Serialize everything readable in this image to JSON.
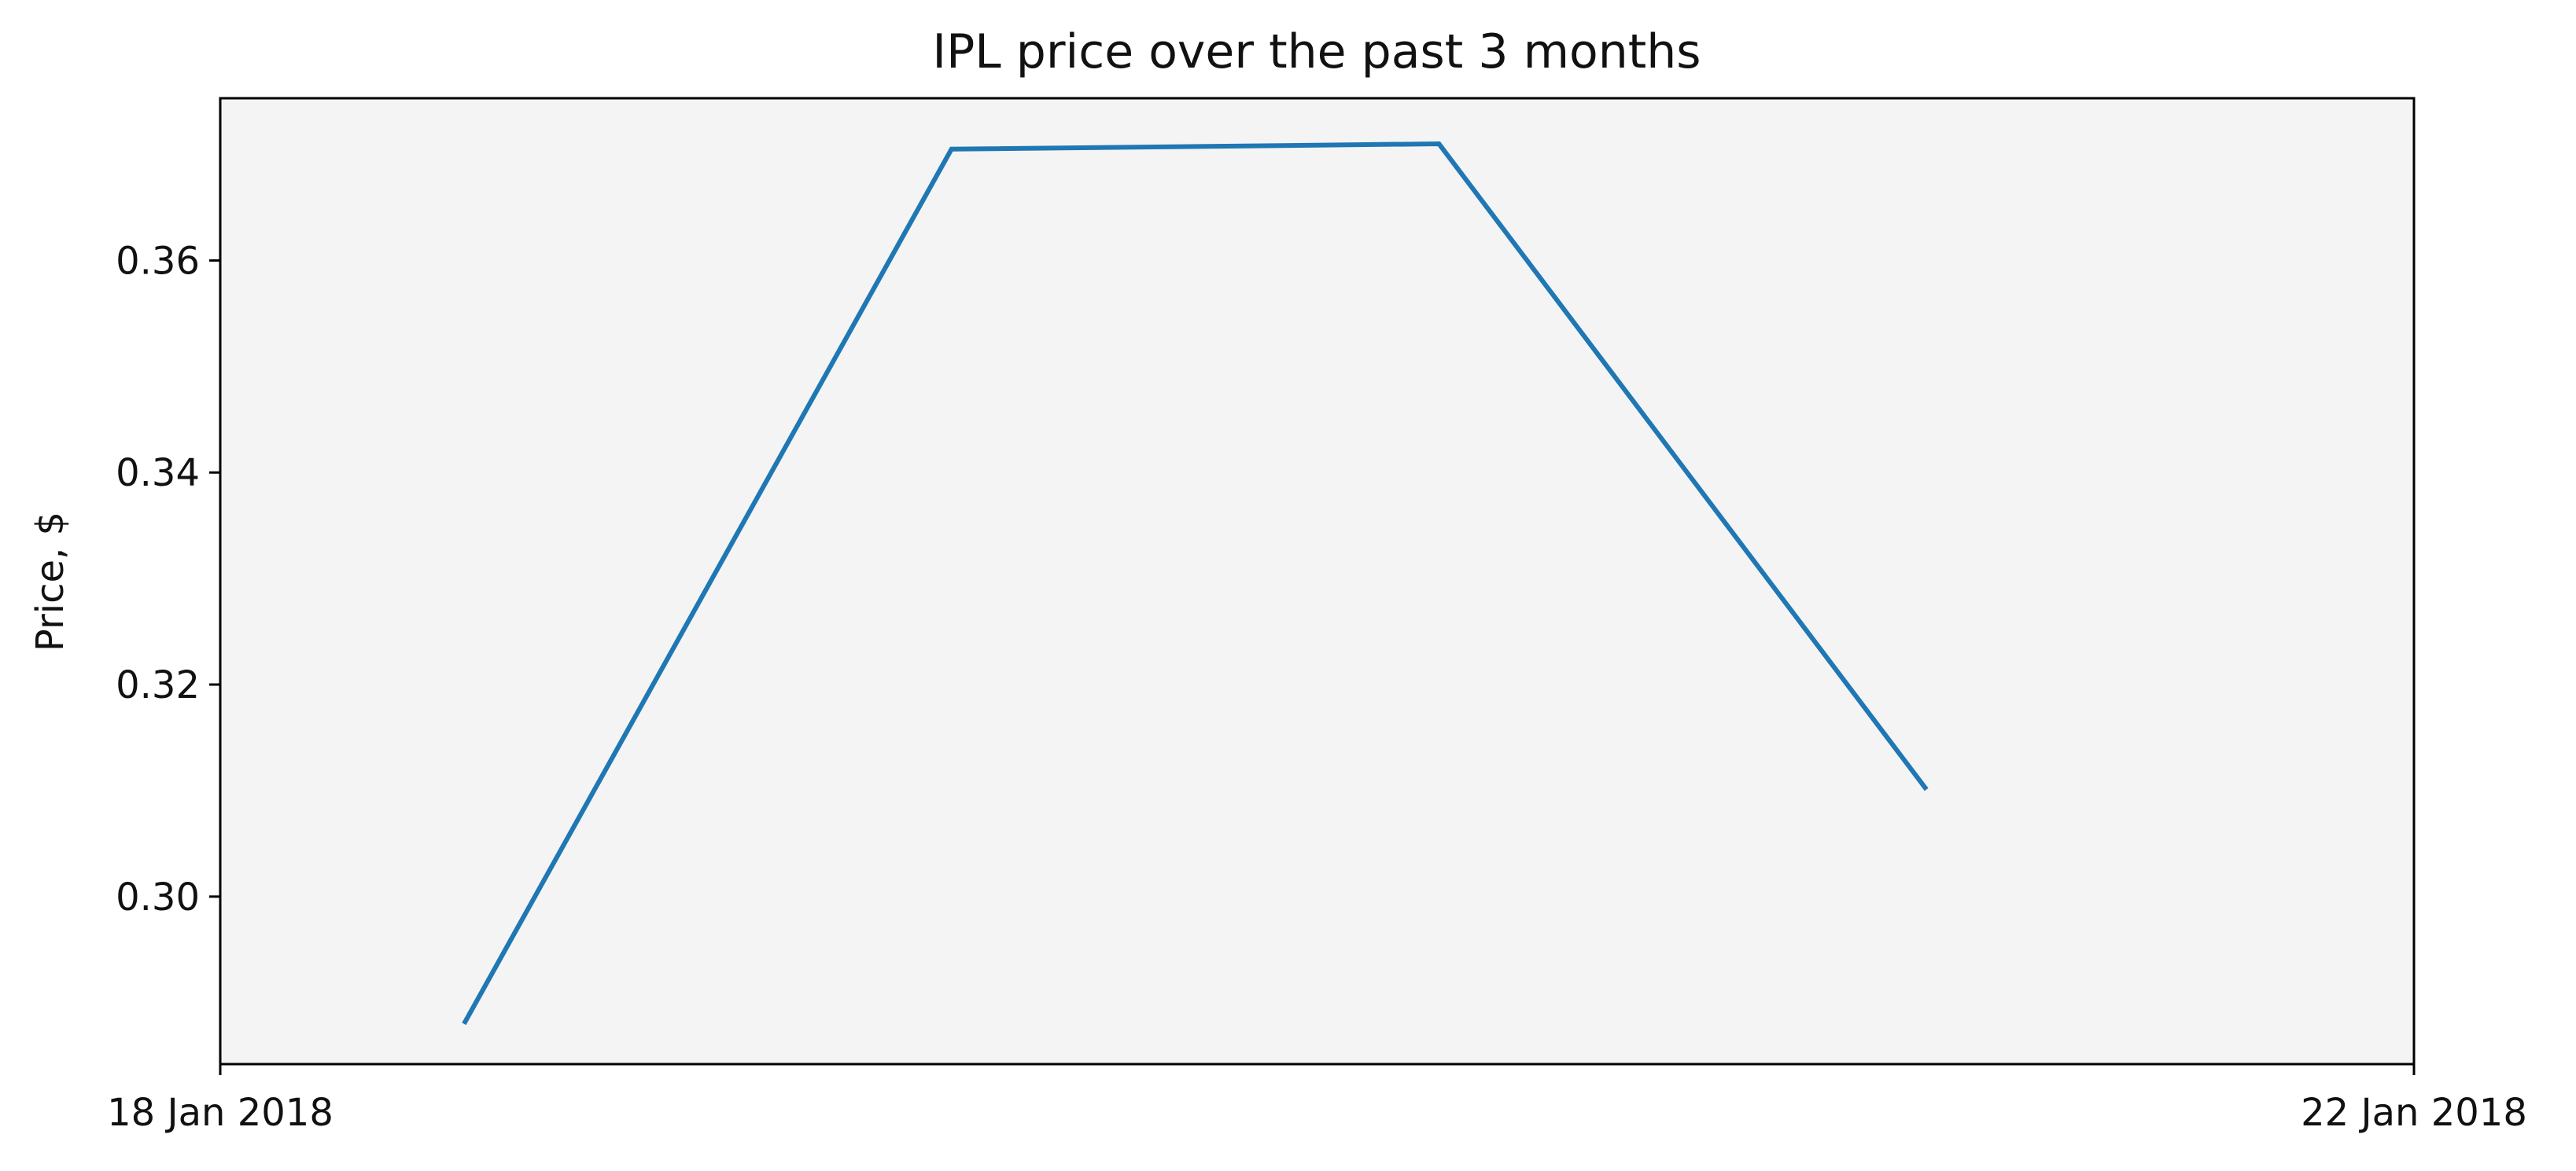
{
  "chart_data": {
    "type": "line",
    "title": "IPL price over the past 3 months",
    "xlabel": "",
    "ylabel": "Price, $",
    "x": [
      "2018-01-18",
      "2018-01-19",
      "2018-01-20",
      "2018-01-21"
    ],
    "xlim": [
      "2018-01-17 12:00",
      "2018-01-22"
    ],
    "x_ticks": [
      "18 Jan 2018",
      "22 Jan 2018"
    ],
    "series": [
      {
        "values": [
          0.288,
          0.3705,
          0.371,
          0.3101
        ]
      }
    ],
    "ylim": [
      0.2842,
      0.3753
    ],
    "y_ticks": [
      0.3,
      0.32,
      0.34,
      0.36
    ],
    "y_tick_labels": [
      "0.30",
      "0.32",
      "0.34",
      "0.36"
    ],
    "grid": false,
    "plot_background": "#f4f4f4",
    "line_color": "#1f77b4"
  }
}
